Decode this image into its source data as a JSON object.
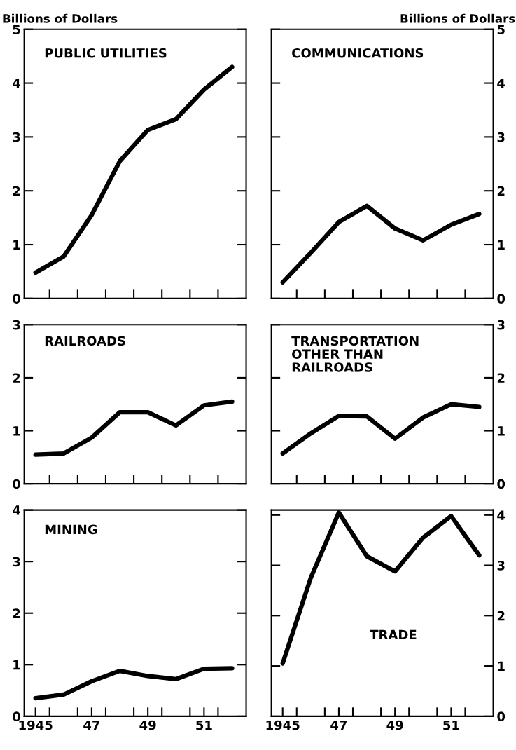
{
  "chart_data": [
    {
      "type": "line",
      "title": "PUBLIC UTILITIES",
      "ylabel": "Billions of Dollars",
      "x": [
        1945,
        1946,
        1947,
        1948,
        1949,
        1950,
        1951,
        1952
      ],
      "series": [
        {
          "color": "#000000",
          "values": [
            0.48,
            0.78,
            1.55,
            2.55,
            3.13,
            3.33,
            3.88,
            4.3
          ]
        }
      ],
      "xlim": [
        1944.6,
        1952.5
      ],
      "xticks": [
        {
          "value": 1945.5,
          "label": null
        },
        {
          "value": 1946.5,
          "label": null
        },
        {
          "value": 1947.5,
          "label": null
        },
        {
          "value": 1948.5,
          "label": null
        },
        {
          "value": 1949.5,
          "label": null
        },
        {
          "value": 1950.5,
          "label": null
        },
        {
          "value": 1951.5,
          "label": null
        }
      ],
      "ylim": [
        0,
        5
      ],
      "yticks": [
        0,
        1,
        2,
        3,
        4,
        5
      ],
      "tick_labels": "y",
      "grid": false,
      "legend": false,
      "marker": "none",
      "line_style": "solid"
    },
    {
      "type": "line",
      "title": "COMMUNICATIONS",
      "ylabel": "Billions of Dollars",
      "x": [
        1945,
        1946,
        1947,
        1948,
        1949,
        1950,
        1951,
        1952
      ],
      "series": [
        {
          "color": "#000000",
          "values": [
            0.3,
            0.85,
            1.42,
            1.72,
            1.3,
            1.08,
            1.37,
            1.57
          ]
        }
      ],
      "xlim": [
        1944.6,
        1952.5
      ],
      "xticks": [
        {
          "value": 1945.5,
          "label": null
        },
        {
          "value": 1946.5,
          "label": null
        },
        {
          "value": 1947.5,
          "label": null
        },
        {
          "value": 1948.5,
          "label": null
        },
        {
          "value": 1949.5,
          "label": null
        },
        {
          "value": 1950.5,
          "label": null
        },
        {
          "value": 1951.5,
          "label": null
        }
      ],
      "ylim": [
        0,
        5
      ],
      "yticks": [
        0,
        1,
        2,
        3,
        4,
        5
      ],
      "tick_labels": "y",
      "grid": false,
      "legend": false,
      "marker": "none",
      "line_style": "solid"
    },
    {
      "type": "line",
      "title": "RAILROADS",
      "x": [
        1945,
        1946,
        1947,
        1948,
        1949,
        1950,
        1951,
        1952
      ],
      "series": [
        {
          "color": "#000000",
          "values": [
            0.55,
            0.57,
            0.87,
            1.35,
            1.35,
            1.1,
            1.48,
            1.55
          ]
        }
      ],
      "xlim": [
        1944.6,
        1952.5
      ],
      "xticks": [
        {
          "value": 1945.5,
          "label": null
        },
        {
          "value": 1946.5,
          "label": null
        },
        {
          "value": 1947.5,
          "label": null
        },
        {
          "value": 1948.5,
          "label": null
        },
        {
          "value": 1949.5,
          "label": null
        },
        {
          "value": 1950.5,
          "label": null
        },
        {
          "value": 1951.5,
          "label": null
        }
      ],
      "ylim": [
        0,
        3
      ],
      "yticks": [
        0,
        1,
        2,
        3
      ],
      "tick_labels": "y",
      "grid": false,
      "legend": false,
      "marker": "none",
      "line_style": "solid"
    },
    {
      "type": "line",
      "title": "TRANSPORTATION\nOTHER THAN\nRAILROADS",
      "x": [
        1945,
        1946,
        1947,
        1948,
        1949,
        1950,
        1951,
        1952
      ],
      "series": [
        {
          "color": "#000000",
          "values": [
            0.57,
            0.95,
            1.28,
            1.27,
            0.85,
            1.25,
            1.5,
            1.45
          ]
        }
      ],
      "xlim": [
        1944.6,
        1952.5
      ],
      "xticks": [
        {
          "value": 1945.5,
          "label": null
        },
        {
          "value": 1946.5,
          "label": null
        },
        {
          "value": 1947.5,
          "label": null
        },
        {
          "value": 1948.5,
          "label": null
        },
        {
          "value": 1949.5,
          "label": null
        },
        {
          "value": 1950.5,
          "label": null
        },
        {
          "value": 1951.5,
          "label": null
        }
      ],
      "ylim": [
        0,
        3
      ],
      "yticks": [
        0,
        1,
        2,
        3
      ],
      "tick_labels": "y",
      "grid": false,
      "legend": false,
      "marker": "none",
      "line_style": "solid"
    },
    {
      "type": "line",
      "title": "MINING",
      "x": [
        1945,
        1946,
        1947,
        1948,
        1949,
        1950,
        1951,
        1952
      ],
      "series": [
        {
          "color": "#000000",
          "values": [
            0.35,
            0.42,
            0.68,
            0.88,
            0.78,
            0.72,
            0.92,
            0.93
          ]
        }
      ],
      "xlim": [
        1944.6,
        1952.5
      ],
      "xticks": [
        {
          "value": 1945,
          "label": "1945"
        },
        {
          "value": 1945.5,
          "label": null
        },
        {
          "value": 1946.5,
          "label": null
        },
        {
          "value": 1947,
          "label": "47"
        },
        {
          "value": 1947.5,
          "label": null
        },
        {
          "value": 1948.5,
          "label": null
        },
        {
          "value": 1949,
          "label": "49"
        },
        {
          "value": 1949.5,
          "label": null
        },
        {
          "value": 1950.5,
          "label": null
        },
        {
          "value": 1951,
          "label": "51"
        },
        {
          "value": 1951.5,
          "label": null
        }
      ],
      "ylim": [
        0,
        4
      ],
      "yticks": [
        0,
        1,
        2,
        3,
        4
      ],
      "grid": false,
      "legend": false,
      "marker": "none",
      "line_style": "solid"
    },
    {
      "type": "line",
      "title": "TRADE",
      "x": [
        1945,
        1946,
        1947,
        1948,
        1949,
        1950,
        1951,
        1952
      ],
      "series": [
        {
          "color": "#000000",
          "values": [
            1.05,
            2.75,
            4.05,
            3.18,
            2.88,
            3.55,
            3.98,
            3.2
          ]
        }
      ],
      "xlim": [
        1944.6,
        1952.5
      ],
      "xticks": [
        {
          "value": 1945,
          "label": "1945"
        },
        {
          "value": 1945.5,
          "label": null
        },
        {
          "value": 1946.5,
          "label": null
        },
        {
          "value": 1947,
          "label": "47"
        },
        {
          "value": 1947.5,
          "label": null
        },
        {
          "value": 1948.5,
          "label": null
        },
        {
          "value": 1949,
          "label": "49"
        },
        {
          "value": 1949.5,
          "label": null
        },
        {
          "value": 1950.5,
          "label": null
        },
        {
          "value": 1951,
          "label": "51"
        },
        {
          "value": 1951.5,
          "label": null
        }
      ],
      "ylim": [
        0,
        4.1
      ],
      "yticks": [
        0,
        1,
        2,
        3,
        4
      ],
      "grid": false,
      "legend": false,
      "marker": "none",
      "line_style": "solid"
    }
  ]
}
